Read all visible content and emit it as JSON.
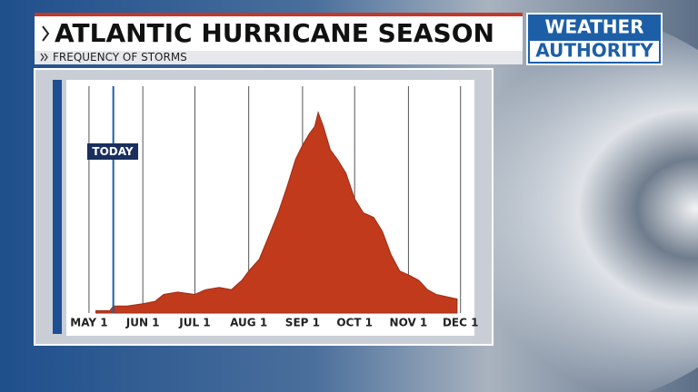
{
  "header": {
    "title": "ATLANTIC HURRICANE SEASON",
    "subtitle": "FREQUENCY OF STORMS"
  },
  "branding": {
    "top": "WEATHER",
    "bottom": "AUTHORITY"
  },
  "chart_data": {
    "type": "area",
    "color": "#c13a1c",
    "x": [
      4,
      12,
      14,
      22,
      31,
      38,
      43,
      51,
      61,
      67,
      75,
      82,
      88,
      92,
      98,
      103,
      109,
      114,
      119,
      123,
      127,
      130,
      132,
      135,
      139,
      143,
      148,
      153,
      158,
      164,
      169,
      174,
      179,
      185,
      190,
      195,
      200,
      206,
      212
    ],
    "values": [
      1,
      1,
      3,
      3,
      4,
      5,
      8,
      9,
      8,
      10,
      11,
      10,
      14,
      18,
      23,
      32,
      43,
      54,
      66,
      72,
      77,
      80,
      86,
      80,
      70,
      66,
      60,
      49,
      43,
      41,
      35,
      25,
      18,
      16,
      14,
      10,
      8,
      7,
      6
    ],
    "xlim": [
      -12,
      222
    ],
    "ylim": [
      0,
      100
    ],
    "xticks": [
      {
        "value": 0,
        "label": "MAY 1"
      },
      {
        "value": 31,
        "label": "JUN 1"
      },
      {
        "value": 61,
        "label": "JUL 1"
      },
      {
        "value": 92,
        "label": "AUG 1"
      },
      {
        "value": 123,
        "label": "SEP 1"
      },
      {
        "value": 153,
        "label": "OCT 1"
      },
      {
        "value": 184,
        "label": "NOV 1"
      },
      {
        "value": 214,
        "label": "DEC 1"
      }
    ],
    "grid": true,
    "annotation": {
      "x": 14,
      "label": "TODAY",
      "color": "#1d5fa6"
    }
  }
}
